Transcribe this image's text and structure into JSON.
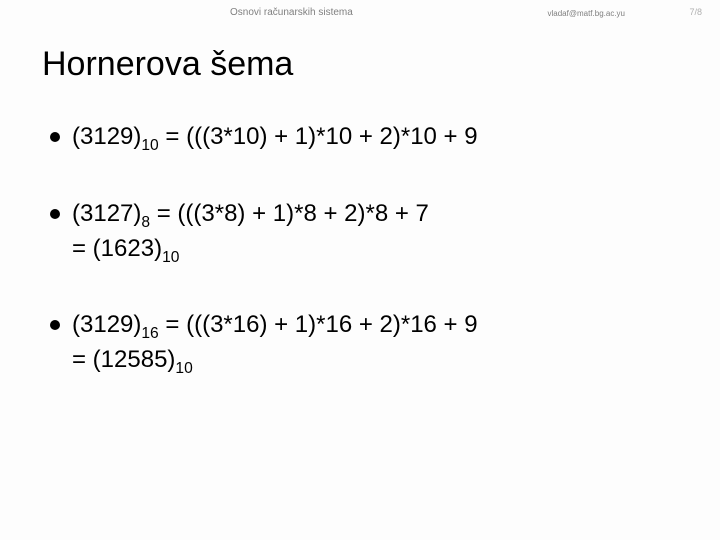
{
  "header": {
    "course": "Osnovi računarskih sistema",
    "email": "vladaf@matf.bg.ac.yu",
    "page": "7/8"
  },
  "title": "Hornerova šema",
  "items": [
    {
      "num": "(3129)",
      "base": "10",
      "expr": "  = (((3*10) + 1)*10 + 2)*10 + 9",
      "result": null,
      "result_base": null
    },
    {
      "num": "(3127)",
      "base": "8",
      "expr": " = (((3*8) + 1)*8 + 2)*8 + 7",
      "result": "= (1623)",
      "result_base": "10"
    },
    {
      "num": "(3129)",
      "base": "16",
      "expr": " = (((3*16) + 1)*16 + 2)*16 + 9",
      "result": "= (12585)",
      "result_base": "10"
    }
  ],
  "style": {
    "background": "#fdfdfd",
    "text_color": "#000000",
    "header_text_color": "#808080",
    "bullet_color": "#000000",
    "title_fontsize": 34,
    "body_fontsize": 24,
    "header_fontsize": 10
  }
}
